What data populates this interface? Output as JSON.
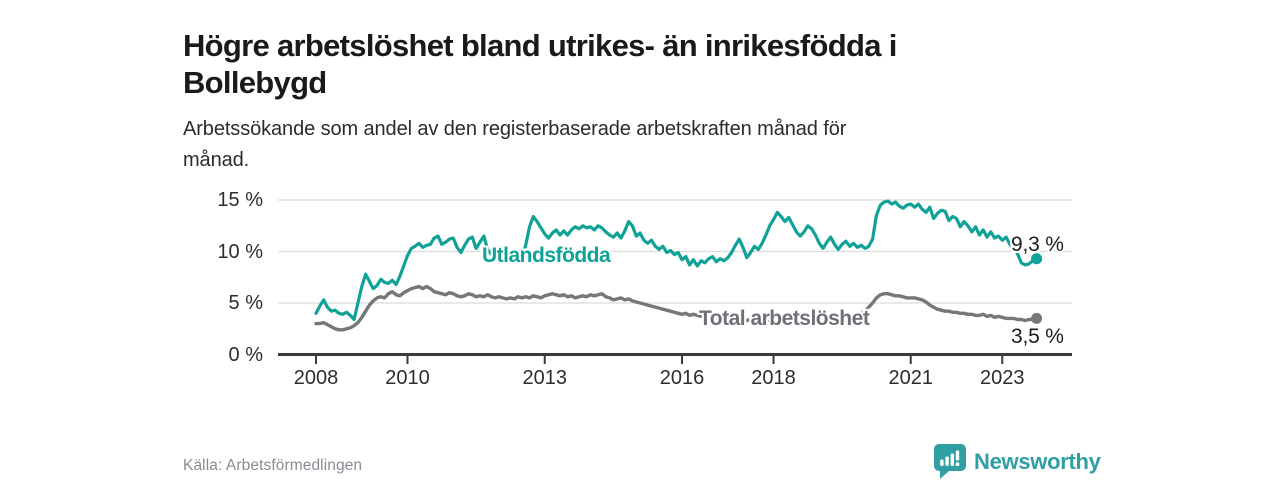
{
  "header": {
    "title_lines": [
      "Högre arbetslöshet bland utrikes- än inrikesfödda i",
      "Bollebygd"
    ],
    "subtitle_lines": [
      "Arbetssökande som andel av den registerbaserade arbetskraften månad för",
      "månad."
    ]
  },
  "chart_data": {
    "type": "line",
    "title": "Högre arbetslöshet bland utrikes- än inrikesfödda i Bollebygd",
    "subtitle": "Arbetssökande som andel av den registerbaserade arbetskraften månad för månad.",
    "x_unit": "month",
    "x_range": [
      "2008-01",
      "2023-10"
    ],
    "x_ticks": [
      2008,
      2010,
      2013,
      2016,
      2018,
      2021,
      2023
    ],
    "y_ticks": [
      {
        "value": 0,
        "label": "0 %"
      },
      {
        "value": 5,
        "label": "5 %"
      },
      {
        "value": 10,
        "label": "10 %"
      },
      {
        "value": 15,
        "label": "15 %"
      }
    ],
    "ylim": [
      0,
      15.5
    ],
    "grid": "horizontal",
    "legend_position": "inline-labels",
    "series": [
      {
        "name": "Utlandsfödda",
        "color": "#10a296",
        "end_label": "9,3 %",
        "end_value": 9.3,
        "values": [
          4.0,
          4.7,
          5.3,
          4.6,
          4.2,
          4.3,
          4.0,
          3.9,
          4.1,
          3.8,
          3.4,
          5.0,
          6.6,
          7.8,
          7.1,
          6.4,
          6.7,
          7.3,
          7.0,
          6.9,
          7.2,
          6.8,
          7.6,
          8.6,
          9.6,
          10.3,
          10.5,
          10.8,
          10.4,
          10.6,
          10.7,
          11.3,
          11.5,
          10.7,
          10.9,
          11.2,
          11.3,
          10.4,
          9.9,
          10.6,
          11.2,
          11.4,
          10.3,
          10.9,
          11.5,
          10.2,
          9.7,
          10.0,
          10.4,
          9.8,
          9.4,
          9.8,
          9.3,
          9.6,
          9.2,
          10.6,
          12.4,
          13.4,
          12.9,
          12.3,
          11.7,
          11.3,
          11.8,
          12.1,
          11.6,
          12.0,
          11.6,
          12.1,
          12.4,
          12.2,
          12.5,
          12.3,
          12.4,
          12.1,
          12.5,
          12.3,
          11.9,
          11.6,
          11.4,
          11.8,
          11.3,
          12.0,
          12.9,
          12.5,
          11.5,
          11.8,
          11.1,
          10.8,
          11.1,
          10.5,
          10.2,
          10.5,
          9.9,
          10.1,
          9.7,
          9.9,
          9.2,
          9.5,
          8.7,
          9.2,
          8.6,
          9.1,
          8.9,
          9.3,
          9.5,
          9.0,
          9.3,
          9.1,
          9.4,
          9.9,
          10.6,
          11.2,
          10.4,
          9.4,
          9.9,
          10.5,
          10.2,
          10.8,
          11.6,
          12.5,
          13.1,
          13.8,
          13.4,
          12.9,
          13.3,
          12.6,
          11.9,
          11.5,
          11.9,
          12.5,
          12.2,
          11.6,
          10.8,
          10.3,
          10.9,
          11.4,
          10.7,
          10.2,
          10.7,
          11.0,
          10.5,
          10.8,
          10.4,
          10.6,
          10.3,
          10.5,
          11.2,
          13.5,
          14.5,
          14.8,
          14.9,
          14.6,
          14.8,
          14.4,
          14.2,
          14.5,
          14.6,
          14.3,
          14.6,
          14.1,
          13.8,
          14.3,
          13.2,
          13.7,
          14.0,
          13.9,
          13.0,
          13.4,
          13.2,
          12.4,
          12.9,
          12.5,
          11.9,
          12.4,
          11.6,
          12.1,
          11.4,
          11.9,
          11.3,
          11.5,
          11.1,
          11.4,
          10.7,
          10.3,
          9.8,
          8.9,
          8.7,
          8.8,
          9.1,
          9.3
        ]
      },
      {
        "name": "Total arbetslöshet",
        "color": "#76767b",
        "end_label": "3,5 %",
        "end_value": 3.5,
        "values": [
          3.0,
          3.0,
          3.1,
          2.9,
          2.7,
          2.5,
          2.4,
          2.4,
          2.5,
          2.6,
          2.8,
          3.1,
          3.6,
          4.2,
          4.8,
          5.2,
          5.5,
          5.6,
          5.5,
          5.9,
          6.1,
          5.8,
          5.7,
          6.0,
          6.2,
          6.4,
          6.5,
          6.6,
          6.4,
          6.6,
          6.4,
          6.1,
          6.0,
          5.9,
          5.8,
          6.0,
          5.9,
          5.7,
          5.6,
          5.7,
          5.9,
          5.8,
          5.6,
          5.7,
          5.6,
          5.8,
          5.6,
          5.5,
          5.6,
          5.5,
          5.4,
          5.5,
          5.4,
          5.6,
          5.5,
          5.6,
          5.5,
          5.7,
          5.6,
          5.5,
          5.7,
          5.8,
          5.9,
          5.8,
          5.7,
          5.8,
          5.6,
          5.7,
          5.5,
          5.6,
          5.7,
          5.6,
          5.8,
          5.7,
          5.8,
          5.9,
          5.6,
          5.5,
          5.3,
          5.4,
          5.5,
          5.3,
          5.4,
          5.2,
          5.1,
          5.0,
          4.9,
          4.8,
          4.7,
          4.6,
          4.5,
          4.4,
          4.3,
          4.2,
          4.1,
          4.0,
          3.9,
          4.0,
          3.8,
          3.9,
          3.8,
          3.7,
          3.6,
          3.7,
          3.6,
          3.5,
          3.6,
          3.5,
          3.5,
          3.6,
          3.4,
          3.5,
          3.4,
          3.3,
          3.4,
          3.3,
          3.4,
          3.3,
          3.4,
          3.3,
          3.4,
          3.3,
          3.4,
          3.2,
          3.3,
          3.2,
          3.3,
          3.2,
          3.3,
          3.4,
          3.3,
          3.4,
          3.4,
          3.4,
          3.5,
          3.5,
          3.6,
          3.6,
          3.7,
          3.7,
          3.8,
          3.8,
          3.9,
          4.0,
          4.2,
          4.6,
          5.0,
          5.5,
          5.8,
          5.9,
          5.9,
          5.8,
          5.7,
          5.7,
          5.6,
          5.5,
          5.5,
          5.5,
          5.4,
          5.3,
          5.1,
          4.8,
          4.6,
          4.4,
          4.3,
          4.2,
          4.2,
          4.1,
          4.1,
          4.0,
          4.0,
          3.9,
          3.9,
          3.8,
          3.8,
          3.9,
          3.7,
          3.8,
          3.6,
          3.7,
          3.6,
          3.5,
          3.5,
          3.5,
          3.4,
          3.4,
          3.3,
          3.4,
          3.4,
          3.5
        ]
      }
    ]
  },
  "footer": {
    "source": "Källa: Arbetsförmedlingen",
    "brand": "Newsworthy"
  },
  "colors": {
    "accent_teal": "#10a296",
    "line_gray": "#76767b",
    "gridline": "#dcdcdc",
    "axis": "#3a3a3a",
    "logo_teal": "#2f9fa4"
  }
}
